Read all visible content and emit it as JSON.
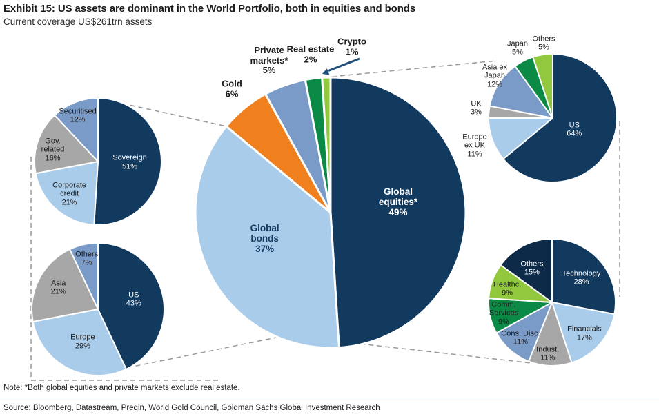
{
  "header": {
    "title": "Exhibit 15: US assets are dominant in the World Portfolio, both in equities and bonds",
    "subtitle": "Current coverage US$261trn assets"
  },
  "footer": {
    "note": "Note: *Both global equities and private markets exclude real estate.",
    "source": "Source: Bloomberg, Datastream, Preqin, World Gold Council, Goldman Sachs Global Investment Research"
  },
  "palette": {
    "navy": "#123A5F",
    "navy_dark": "#0D2A49",
    "light_blue": "#A9CCEA",
    "steel_blue": "#7A9BC8",
    "gray": "#A7A7A7",
    "orange": "#F0801E",
    "green_dark": "#0B8A46",
    "green_light": "#92C83E",
    "text_dark": "#1A1A1A",
    "white": "#FFFFFF",
    "dash_line": "#999999",
    "arrow": "#1F4E79",
    "rule": "#8C9AA5"
  },
  "chart_data": {
    "type": "pie",
    "title": "Exhibit 15: US assets are dominant in the World Portfolio, both in equities and bonds",
    "subtitle": "Current coverage US$261trn assets",
    "unit": "%",
    "pies": [
      {
        "id": "main",
        "slices": [
          {
            "label": "Global equities*",
            "lines": [
              "Global",
              "equities*"
            ],
            "value": 49,
            "color": "navy"
          },
          {
            "label": "Global bonds",
            "lines": [
              "Global",
              "bonds"
            ],
            "value": 37,
            "color": "light_blue"
          },
          {
            "label": "Gold",
            "lines": [
              "Gold"
            ],
            "value": 6,
            "color": "orange"
          },
          {
            "label": "Private markets*",
            "lines": [
              "Private",
              "markets*"
            ],
            "value": 5,
            "color": "steel_blue"
          },
          {
            "label": "Real estate",
            "lines": [
              "Real estate"
            ],
            "value": 2,
            "color": "green_dark"
          },
          {
            "label": "Crypto",
            "lines": [
              "Crypto"
            ],
            "value": 1,
            "color": "green_light"
          }
        ]
      },
      {
        "id": "bonds_type",
        "slices": [
          {
            "label": "Sovereign",
            "lines": [
              "Sovereign"
            ],
            "value": 51,
            "color": "navy"
          },
          {
            "label": "Corporate credit",
            "lines": [
              "Corporate",
              "credit"
            ],
            "value": 21,
            "color": "light_blue"
          },
          {
            "label": "Gov. related",
            "lines": [
              "Gov.",
              "related"
            ],
            "value": 16,
            "color": "gray"
          },
          {
            "label": "Securitised",
            "lines": [
              "Securitised"
            ],
            "value": 12,
            "color": "steel_blue"
          }
        ]
      },
      {
        "id": "bonds_region",
        "slices": [
          {
            "label": "US",
            "lines": [
              "US"
            ],
            "value": 43,
            "color": "navy"
          },
          {
            "label": "Europe",
            "lines": [
              "Europe"
            ],
            "value": 29,
            "color": "light_blue"
          },
          {
            "label": "Asia",
            "lines": [
              "Asia"
            ],
            "value": 21,
            "color": "gray"
          },
          {
            "label": "Others",
            "lines": [
              "Others"
            ],
            "value": 7,
            "color": "steel_blue"
          }
        ]
      },
      {
        "id": "equities_region",
        "slices": [
          {
            "label": "US",
            "lines": [
              "US"
            ],
            "value": 64,
            "color": "navy"
          },
          {
            "label": "Europe ex UK",
            "lines": [
              "Europe",
              "ex UK"
            ],
            "value": 11,
            "color": "light_blue"
          },
          {
            "label": "UK",
            "lines": [
              "UK"
            ],
            "value": 3,
            "color": "gray"
          },
          {
            "label": "Asia ex Japan",
            "lines": [
              "Asia ex",
              "Japan"
            ],
            "value": 12,
            "color": "steel_blue"
          },
          {
            "label": "Japan",
            "lines": [
              "Japan"
            ],
            "value": 5,
            "color": "green_dark"
          },
          {
            "label": "Others",
            "lines": [
              "Others"
            ],
            "value": 5,
            "color": "green_light"
          }
        ]
      },
      {
        "id": "equities_sector",
        "slices": [
          {
            "label": "Technology",
            "lines": [
              "Technology"
            ],
            "value": 28,
            "color": "navy"
          },
          {
            "label": "Financials",
            "lines": [
              "Financials"
            ],
            "value": 17,
            "color": "light_blue"
          },
          {
            "label": "Indust.",
            "lines": [
              "Indust."
            ],
            "value": 11,
            "color": "gray"
          },
          {
            "label": "Cons. Disc.",
            "lines": [
              "Cons. Disc."
            ],
            "value": 11,
            "color": "steel_blue"
          },
          {
            "label": "Comm. Services",
            "lines": [
              "Comm.",
              "Services"
            ],
            "value": 9,
            "color": "green_dark"
          },
          {
            "label": "Healthc.",
            "lines": [
              "Healthc."
            ],
            "value": 9,
            "color": "green_light"
          },
          {
            "label": "Others",
            "lines": [
              "Others"
            ],
            "value": 15,
            "color": "navy_dark"
          }
        ]
      }
    ]
  }
}
